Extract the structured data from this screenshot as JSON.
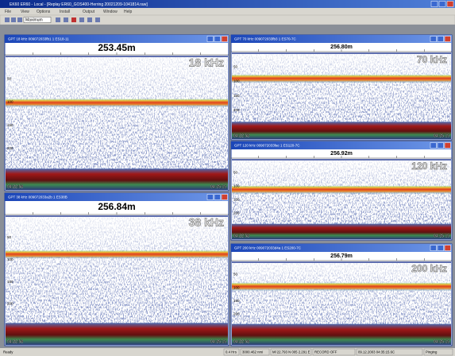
{
  "window": {
    "title": "EK60 ER60 - Local - [Replay ER60_GOS400-Herring 20021209-1041814.raw]"
  },
  "menu": [
    "File",
    "View",
    "Options",
    "Install",
    "Output",
    "Window",
    "Help"
  ],
  "toolbar": {
    "dropdown": "Maximum"
  },
  "panels": [
    {
      "title": "GPT  18 kHz 009072033fb1 1 ES18-11",
      "depth": "253.45m",
      "frequency": "18 kHz",
      "depth_ticks": [
        "50",
        "100",
        "150",
        "200"
      ],
      "start_time": "04:22:58",
      "end_time": "04:35:15"
    },
    {
      "title": "GPT  38 kHz 009072033a2b 1 ES38B",
      "depth": "256.84m",
      "frequency": "38 kHz",
      "depth_ticks": [
        "50",
        "100",
        "150",
        "200"
      ],
      "start_time": "04:22:58",
      "end_time": "04:35:15"
    },
    {
      "title": "GPT  70 kHz 009072033fb3 1 ES70-7C",
      "depth": "256.80m",
      "frequency": "70 kHz",
      "depth_ticks": [
        "50",
        "100",
        "150",
        "200"
      ],
      "start_time": "04:22:58",
      "end_time": "04:35:15"
    },
    {
      "title": "GPT 120 kHz 009072033fac 1 ES120-7C",
      "depth": "256.92m",
      "frequency": "120 kHz",
      "depth_ticks": [
        "50",
        "100",
        "150",
        "200"
      ],
      "start_time": "04:22:58",
      "end_time": "04:35:15"
    },
    {
      "title": "GPT 200 kHz 009072033d4a 1 ES200-7C",
      "depth": "256.79m",
      "frequency": "200 kHz",
      "depth_ticks": [
        "50",
        "100",
        "150",
        "200"
      ],
      "start_time": "04:22:58",
      "end_time": "04:35:15"
    }
  ],
  "status": [
    "Ready",
    "0.4 Hrs",
    "3000.462 nmi",
    "Ml 22.793 N 005 2.291 E",
    "RECORD OFF",
    "09.12.2003 04:35:15.6C",
    "Pinging"
  ]
}
